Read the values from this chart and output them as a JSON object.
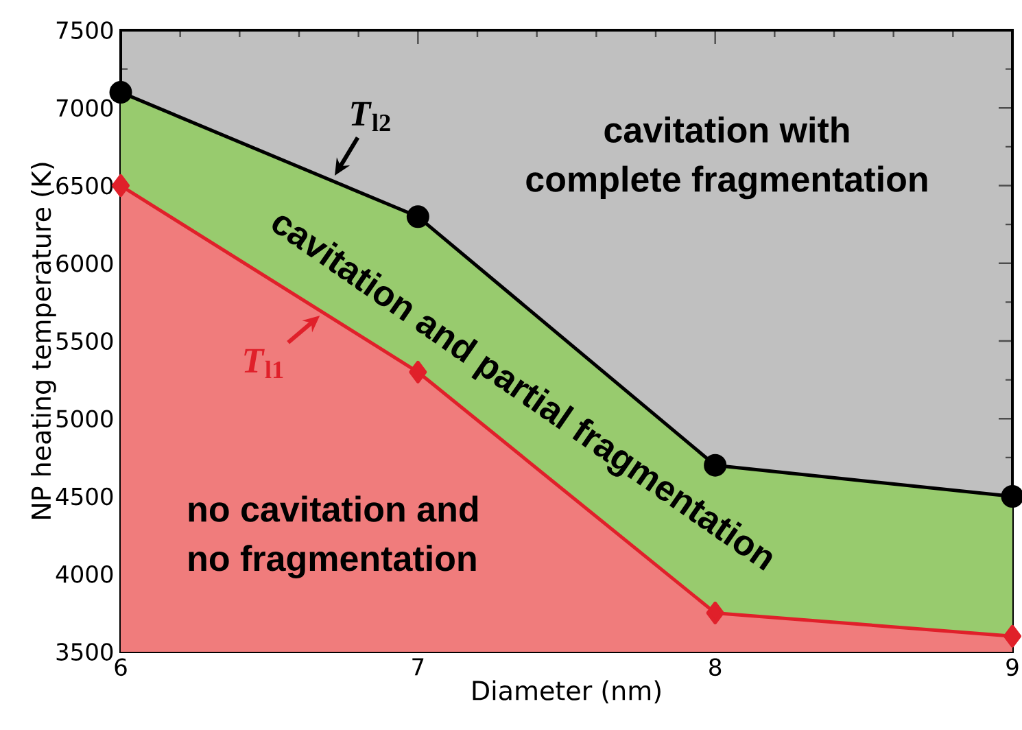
{
  "chart_data": {
    "type": "area",
    "xlabel": "Diameter (nm)",
    "ylabel": "NP heating temperature (K)",
    "x": [
      6,
      7,
      8,
      9
    ],
    "series": [
      {
        "name": "*T*$_{l1}$",
        "color": "#e0202a",
        "marker": "diamond",
        "values": [
          6500,
          5300,
          3750,
          3600
        ]
      },
      {
        "name": "*T*$_{l2}$",
        "color": "#000000",
        "marker": "circle",
        "values": [
          7100,
          6300,
          4700,
          4500
        ]
      }
    ],
    "colors": [
      "#f07c7c",
      "#98cb6e",
      "#c0c0c0"
    ],
    "annotations": [
      "no cavitation and",
      "no fragmentation",
      "cavitation and partial fragmentation",
      "cavitation with",
      "complete fragmentation"
    ],
    "xlim": [
      6,
      9
    ],
    "xticks": [
      6,
      7,
      8,
      9
    ],
    "ylim": [
      3500,
      7500
    ],
    "yticks": [
      3500,
      4000,
      4500,
      5000,
      5500,
      6000,
      6500,
      7000,
      7500
    ]
  }
}
